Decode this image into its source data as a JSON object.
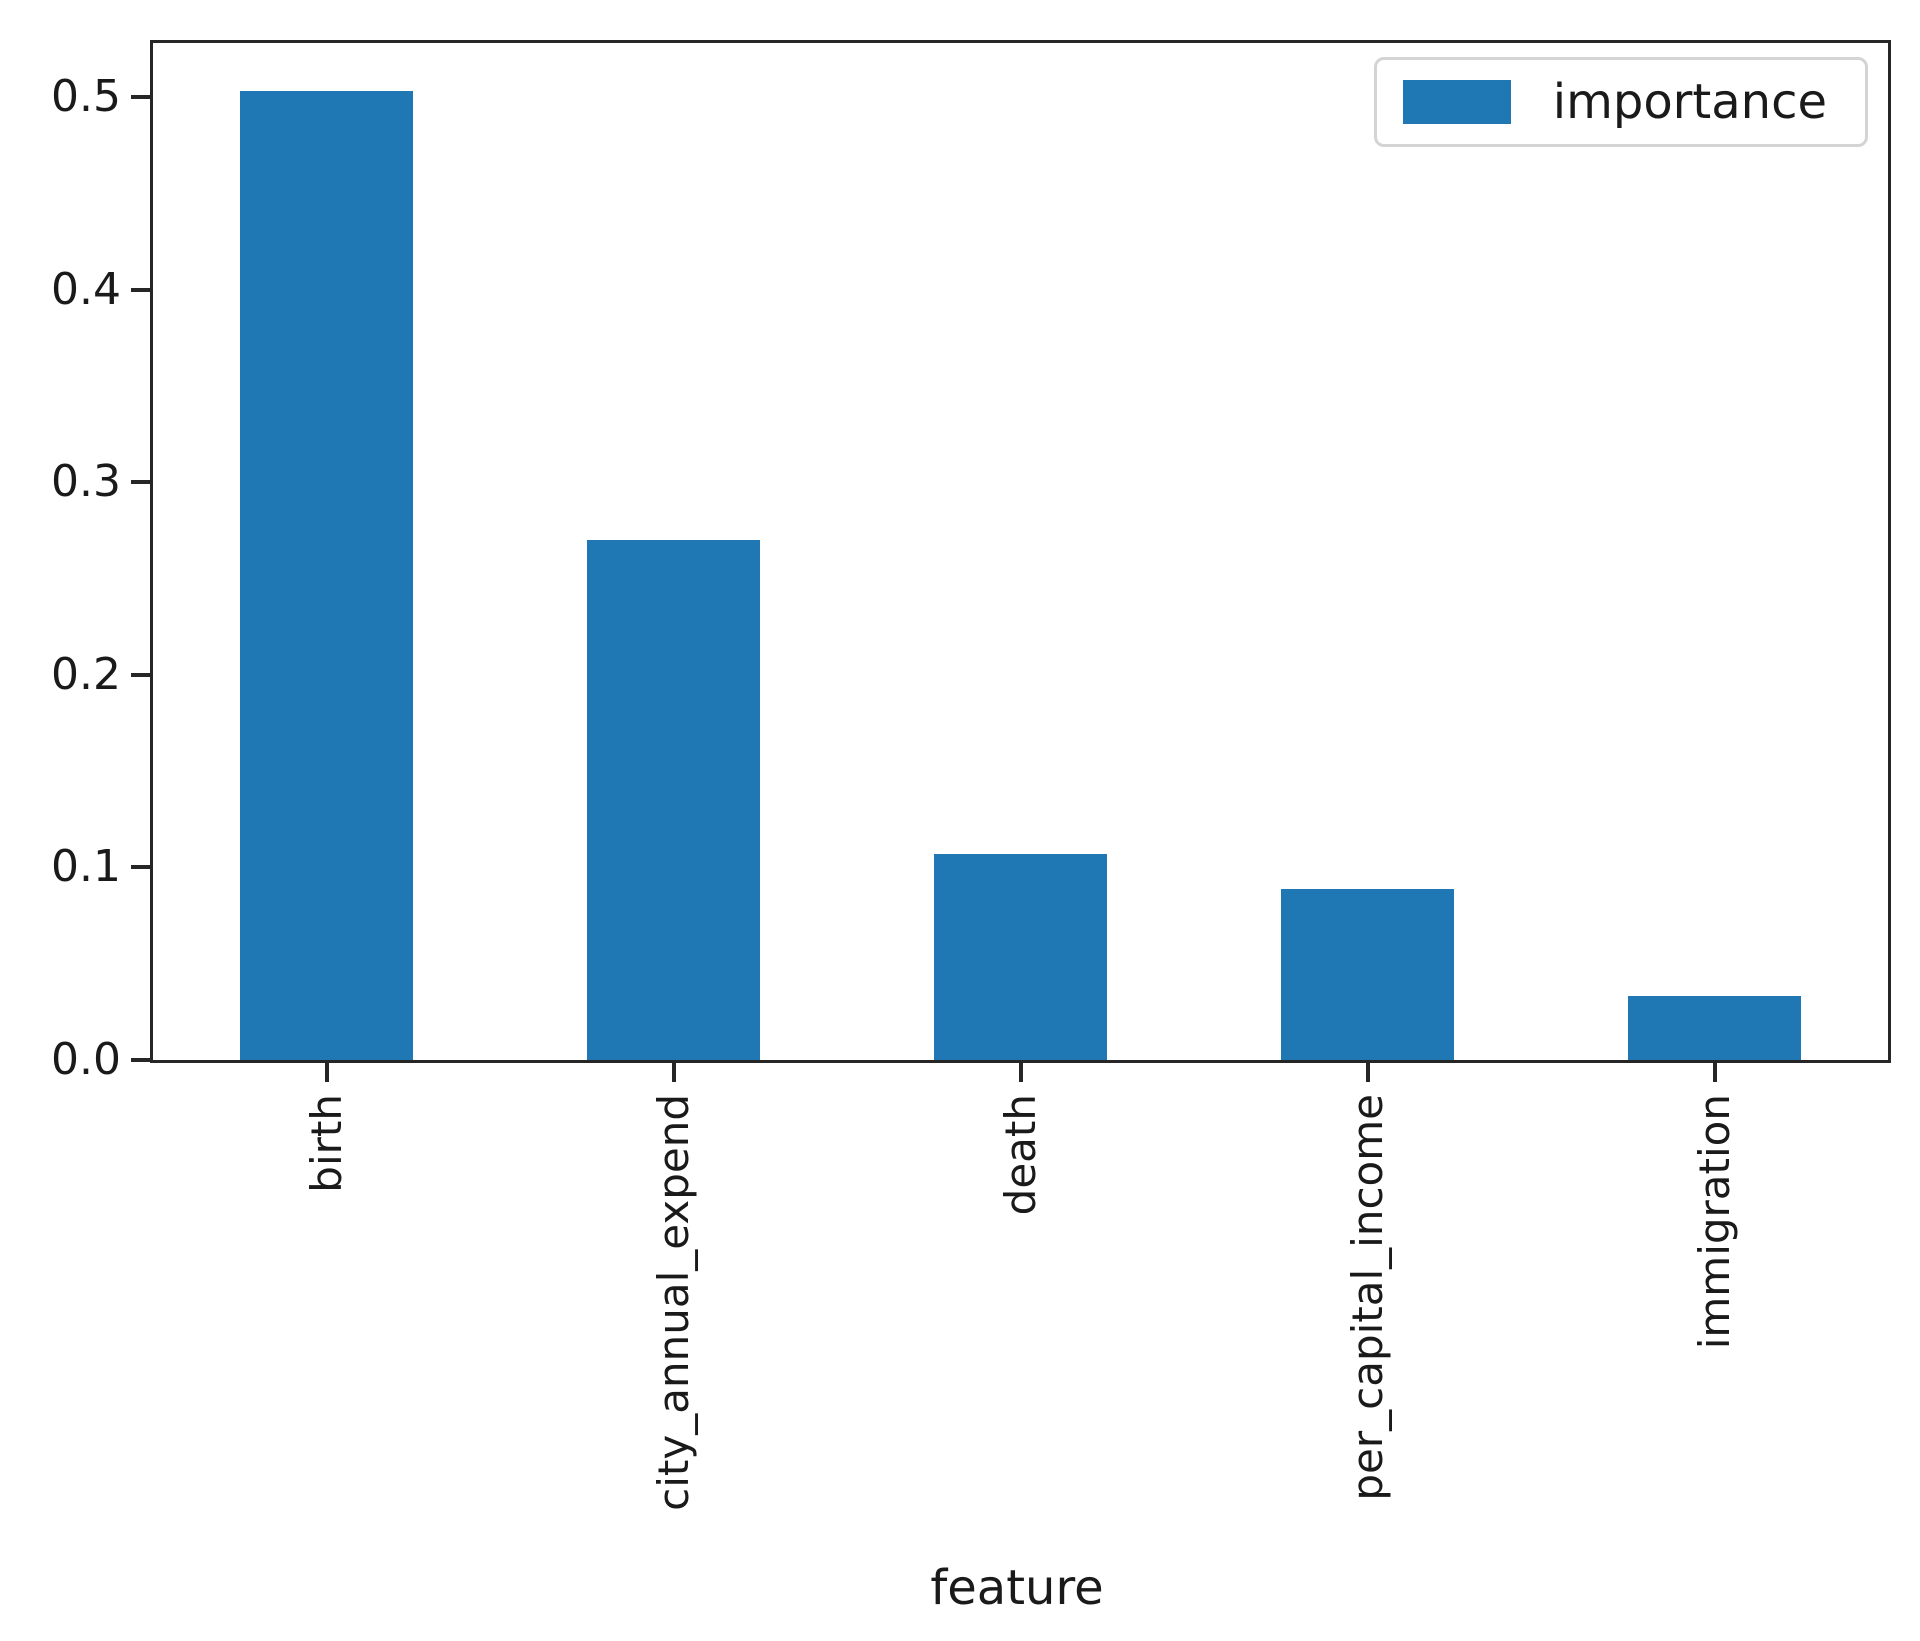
{
  "chart_data": {
    "type": "bar",
    "categories": [
      "birth",
      "city_annual_expend",
      "death",
      "per_capital_income",
      "immigration"
    ],
    "values": [
      0.503,
      0.27,
      0.107,
      0.089,
      0.033
    ],
    "series_name": "importance",
    "title": "",
    "xlabel": "feature",
    "ylabel": "",
    "ylim": [
      0,
      0.528
    ],
    "ytick_labels": [
      "0.0",
      "0.1",
      "0.2",
      "0.3",
      "0.4",
      "0.5"
    ],
    "x_tick_rotation_deg": 90,
    "grid": false,
    "legend": {
      "position": "upper right",
      "label": "importance"
    },
    "bar_color": "#1f77b4"
  },
  "colors": {
    "bar": "#1f77b4",
    "spine": "#262626",
    "text": "#1a1a1a",
    "legend_border": "#d4d4d4",
    "background": "#ffffff"
  }
}
